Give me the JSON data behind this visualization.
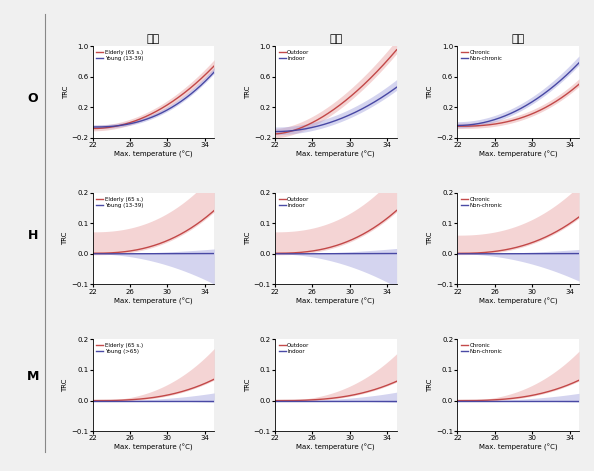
{
  "col_titles": [
    "연령",
    "직업",
    "질환"
  ],
  "row_labels": [
    "O",
    "H",
    "M"
  ],
  "xlabel": "Max. temperature (°C)",
  "ylabel": "TRC",
  "x_ticks": [
    22,
    26,
    30,
    34
  ],
  "legend_O_age": [
    "Elderly (65 s.)",
    "Young (13-39)"
  ],
  "legend_H_age": [
    "Elderly (65 s.)",
    "Young (13-39)"
  ],
  "legend_M_age": [
    "Elderly (65 s.)",
    "Young (>65)"
  ],
  "legend_job": [
    "Outdoor",
    "Indoor"
  ],
  "legend_disease": [
    "Chronic",
    "Non-chronic"
  ],
  "color_red_fill": "#E8A0A0",
  "color_blue_fill": "#A0A0DD",
  "color_red_line": "#C04040",
  "color_blue_line": "#4040A0",
  "row_O_ylim": [
    -0.2,
    1.0
  ],
  "row_O_yticks": [
    -0.2,
    0.2,
    0.6,
    1.0
  ],
  "row_HM_ylim": [
    -0.1,
    0.2
  ],
  "row_HM_yticks": [
    -0.1,
    0.0,
    0.1,
    0.2
  ],
  "bg_color": "#F0F0F0",
  "panel_bg": "#FFFFFF",
  "band_alpha": 0.45,
  "line_alpha": 0.95,
  "line_width": 1.0,
  "tick_fontsize": 5,
  "label_fontsize": 5,
  "legend_fontsize": 4,
  "title_fontsize": 8
}
